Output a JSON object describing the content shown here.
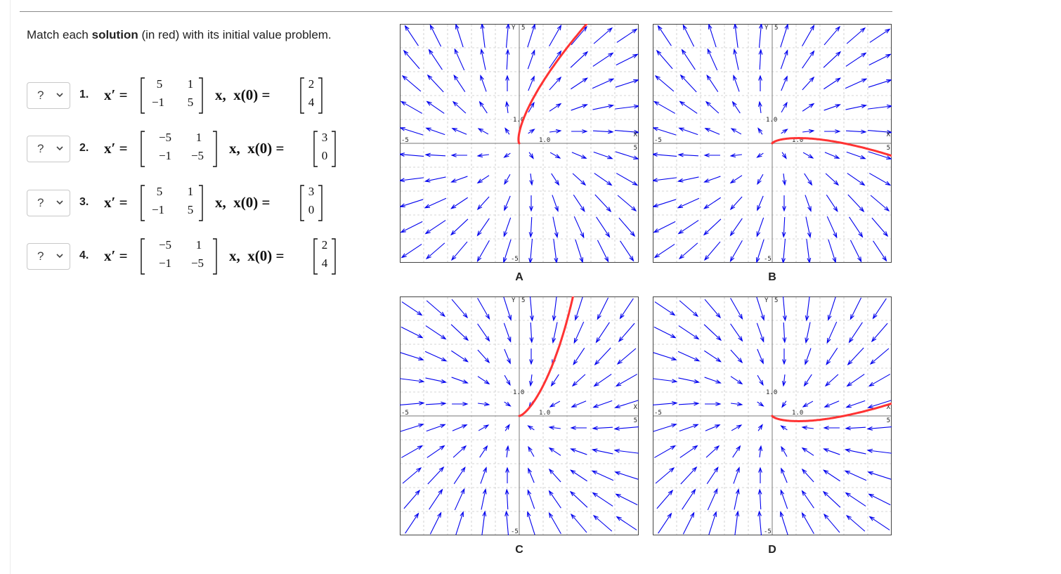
{
  "instructions": {
    "prefix": "Match each ",
    "bold": "solution",
    "suffix": " (in red) with its initial value problem."
  },
  "problems": [
    {
      "select_value": "?",
      "number": "1.",
      "lhs": "x′ =",
      "matrix": [
        "5",
        "1",
        "−1",
        "5"
      ],
      "mid": "x,  x(0) =",
      "init": [
        "2",
        "4"
      ]
    },
    {
      "select_value": "?",
      "number": "2.",
      "lhs": "x′ =",
      "matrix": [
        "−5",
        "1",
        "−1",
        "−5"
      ],
      "mid": "x,  x(0) =",
      "init": [
        "3",
        "0"
      ]
    },
    {
      "select_value": "?",
      "number": "3.",
      "lhs": "x′ =",
      "matrix": [
        "5",
        "1",
        "−1",
        "5"
      ],
      "mid": "x,  x(0) =",
      "init": [
        "3",
        "0"
      ]
    },
    {
      "select_value": "?",
      "number": "4.",
      "lhs": "x′ =",
      "matrix": [
        "−5",
        "1",
        "−1",
        "−5"
      ],
      "mid": "x,  x(0) =",
      "init": [
        "2",
        "4"
      ]
    }
  ],
  "select_icon": "chevron-down-icon",
  "plots": [
    {
      "label": "A",
      "field": "expanding",
      "x0": [
        2,
        4
      ]
    },
    {
      "label": "B",
      "field": "expanding",
      "x0": [
        3,
        0
      ]
    },
    {
      "label": "C",
      "field": "contracting",
      "x0": [
        2,
        4
      ]
    },
    {
      "label": "D",
      "field": "contracting",
      "x0": [
        3,
        0
      ]
    }
  ],
  "plot_axis": {
    "xmin": -5,
    "xmax": 5,
    "ymin": -5,
    "ymax": 5,
    "x_neg_label": "-5",
    "x_pos_label": "5",
    "y_neg_label": "-5",
    "y_pos_label": "5",
    "x_name": "X",
    "y_name": "Y",
    "tick_label_x": "1.0",
    "tick_label_y": "1.0"
  },
  "colors": {
    "solution": "#ff3333",
    "field": "#0000ee",
    "grid": "#c8c8c8",
    "axis": "#909090"
  }
}
